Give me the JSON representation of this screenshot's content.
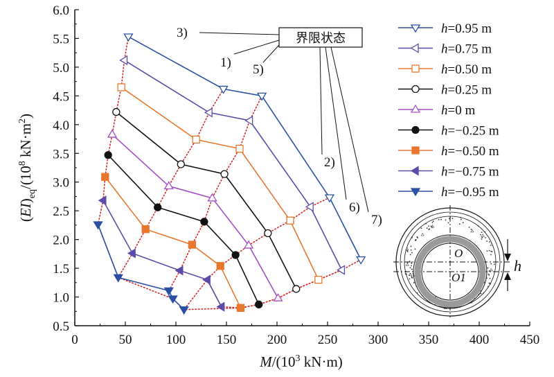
{
  "chart_data": {
    "type": "line",
    "xlabel": "M/(10³ kN·m)",
    "ylabel": "(EI)eq/(10⁸ kN·m²)",
    "xlim": [
      0,
      450
    ],
    "ylim": [
      0.5,
      6.0
    ],
    "x_ticks": [
      "0",
      "50",
      "100",
      "150",
      "200",
      "250",
      "300",
      "350",
      "400",
      "450"
    ],
    "y_ticks": [
      "0.5",
      "1.0",
      "1.5",
      "2.0",
      "2.5",
      "3.0",
      "3.5",
      "4.0",
      "4.5",
      "5.0",
      "5.5",
      "6.0"
    ],
    "grid": false,
    "legend_position": "top-right",
    "series": [
      {
        "name": "h=0.95 m",
        "color": "#2b4fa3",
        "marker": "triangle-down-open",
        "points": [
          [
            53,
            5.53
          ],
          [
            147,
            4.62
          ],
          [
            185,
            4.5
          ],
          [
            252,
            2.73
          ],
          [
            283,
            1.65
          ]
        ]
      },
      {
        "name": "h=0.75 m",
        "color": "#5e4aa8",
        "marker": "triangle-left-open",
        "points": [
          [
            49,
            5.12
          ],
          [
            133,
            4.21
          ],
          [
            173,
            4.07
          ],
          [
            233,
            2.57
          ],
          [
            264,
            1.47
          ]
        ]
      },
      {
        "name": "h=0.50 m",
        "color": "#e8772e",
        "marker": "square-open",
        "points": [
          [
            46,
            4.65
          ],
          [
            120,
            3.74
          ],
          [
            163,
            3.58
          ],
          [
            213,
            2.33
          ],
          [
            241,
            1.3
          ]
        ]
      },
      {
        "name": "h=0.25 m",
        "color": "#111111",
        "marker": "circle-open",
        "points": [
          [
            41,
            4.22
          ],
          [
            105,
            3.31
          ],
          [
            148,
            3.14
          ],
          [
            191,
            2.11
          ],
          [
            219,
            1.14
          ]
        ]
      },
      {
        "name": "h=0 m",
        "color": "#a34fc4",
        "marker": "triangle-up-open",
        "points": [
          [
            37,
            3.83
          ],
          [
            93,
            2.93
          ],
          [
            136,
            2.72
          ],
          [
            172,
            1.9
          ],
          [
            201,
            0.98
          ]
        ]
      },
      {
        "name": "h=−0.25 m",
        "color": "#111111",
        "marker": "circle-filled",
        "points": [
          [
            33,
            3.47
          ],
          [
            82,
            2.56
          ],
          [
            128,
            2.31
          ],
          [
            159,
            1.73
          ],
          [
            182,
            0.87
          ]
        ]
      },
      {
        "name": "h=−0.50 m",
        "color": "#e8772e",
        "marker": "square-filled",
        "points": [
          [
            30,
            3.09
          ],
          [
            70,
            2.18
          ],
          [
            116,
            1.91
          ],
          [
            144,
            1.54
          ],
          [
            164,
            0.81
          ]
        ]
      },
      {
        "name": "h=−0.75 m",
        "color": "#5e4aa8",
        "marker": "triangle-left-filled",
        "points": [
          [
            28,
            2.68
          ],
          [
            57,
            1.76
          ],
          [
            104,
            1.46
          ],
          [
            131,
            1.3
          ],
          [
            145,
            0.83
          ]
        ]
      },
      {
        "name": "h=−0.95 m",
        "color": "#2b4fa3",
        "marker": "triangle-down-filled",
        "points": [
          [
            23,
            2.26
          ],
          [
            43,
            1.34
          ],
          [
            93,
            1.11
          ],
          [
            97,
            0.97
          ],
          [
            108,
            0.78
          ]
        ]
      }
    ],
    "limit_state_curves": [
      {
        "label": "3)",
        "points": [
          [
            53,
            5.53
          ],
          [
            49,
            5.12
          ],
          [
            46,
            4.65
          ],
          [
            41,
            4.22
          ],
          [
            37,
            3.83
          ],
          [
            33,
            3.47
          ],
          [
            30,
            3.09
          ],
          [
            28,
            2.68
          ],
          [
            23,
            2.26
          ],
          [
            43,
            1.34
          ],
          [
            97,
            0.97
          ],
          [
            108,
            0.78
          ]
        ]
      },
      {
        "label": "1)",
        "points": [
          [
            147,
            4.62
          ],
          [
            133,
            4.21
          ],
          [
            120,
            3.74
          ],
          [
            105,
            3.31
          ],
          [
            93,
            2.93
          ],
          [
            82,
            2.56
          ],
          [
            70,
            2.18
          ],
          [
            57,
            1.76
          ],
          [
            43,
            1.34
          ]
        ]
      },
      {
        "label": "5)",
        "points": [
          [
            185,
            4.5
          ],
          [
            173,
            4.07
          ],
          [
            163,
            3.58
          ],
          [
            148,
            3.14
          ],
          [
            136,
            2.72
          ],
          [
            128,
            2.31
          ],
          [
            116,
            1.91
          ],
          [
            104,
            1.46
          ],
          [
            93,
            1.11
          ]
        ]
      },
      {
        "label": "2)",
        "points": [
          [
            252,
            2.73
          ],
          [
            233,
            2.57
          ],
          [
            213,
            2.33
          ],
          [
            191,
            2.11
          ],
          [
            172,
            1.9
          ],
          [
            159,
            1.73
          ],
          [
            144,
            1.54
          ],
          [
            131,
            1.3
          ],
          [
            108,
            0.78
          ]
        ]
      },
      {
        "label": "6)",
        "points": [
          [
            264,
            1.47
          ],
          [
            241,
            1.3
          ],
          [
            219,
            1.14
          ],
          [
            201,
            0.98
          ],
          [
            182,
            0.87
          ],
          [
            164,
            0.81
          ],
          [
            145,
            0.83
          ],
          [
            131,
            1.3
          ]
        ]
      },
      {
        "label": "7)",
        "points": [
          [
            283,
            1.65
          ],
          [
            264,
            1.47
          ],
          [
            241,
            1.3
          ],
          [
            219,
            1.14
          ],
          [
            201,
            0.98
          ],
          [
            182,
            0.87
          ],
          [
            164,
            0.81
          ],
          [
            108,
            0.78
          ]
        ]
      }
    ],
    "annotation": {
      "label": "界限状态"
    },
    "inset": {
      "labels": {
        "o": "O",
        "o1": "O1",
        "h": "h"
      }
    }
  }
}
